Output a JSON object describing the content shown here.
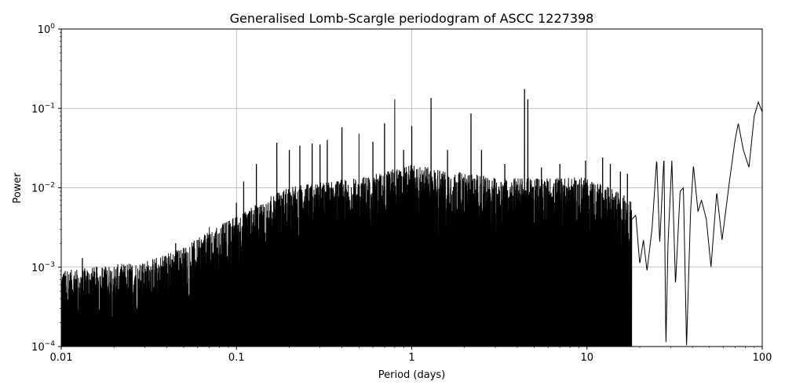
{
  "chart_data": {
    "type": "line",
    "title": "Generalised Lomb-Scargle periodogram of ASCC 1227398",
    "xlabel": "Period (days)",
    "ylabel": "Power",
    "xscale": "log",
    "yscale": "log",
    "xlim": [
      0.01,
      100
    ],
    "ylim": [
      0.0001,
      1
    ],
    "grid": true,
    "line_color": "#000000",
    "grid_color": "#b0b0b0",
    "x_ticks": [
      {
        "value": 0.01,
        "label": "0.01"
      },
      {
        "value": 0.1,
        "label": "0.1"
      },
      {
        "value": 1,
        "label": "1"
      },
      {
        "value": 10,
        "label": "10"
      },
      {
        "value": 100,
        "label": "100"
      }
    ],
    "y_ticks": [
      {
        "value": 0.0001,
        "base": "10",
        "exp": "−4"
      },
      {
        "value": 0.001,
        "base": "10",
        "exp": "−3"
      },
      {
        "value": 0.01,
        "base": "10",
        "exp": "−2"
      },
      {
        "value": 0.1,
        "base": "10",
        "exp": "−1"
      },
      {
        "value": 1,
        "base": "10",
        "exp": "0"
      }
    ],
    "noise_envelope": [
      [
        0.01,
        0.0006
      ],
      [
        0.03,
        0.0008
      ],
      [
        0.05,
        0.0012
      ],
      [
        0.1,
        0.003
      ],
      [
        0.2,
        0.007
      ],
      [
        0.5,
        0.009
      ],
      [
        1,
        0.013
      ],
      [
        3,
        0.009
      ],
      [
        10,
        0.009
      ],
      [
        18,
        0.005
      ]
    ],
    "peaks": [
      [
        0.0132,
        0.0013
      ],
      [
        0.045,
        0.002
      ],
      [
        0.07,
        0.0032
      ],
      [
        0.1,
        0.0065
      ],
      [
        0.11,
        0.012
      ],
      [
        0.13,
        0.02
      ],
      [
        0.17,
        0.037
      ],
      [
        0.2,
        0.03
      ],
      [
        0.23,
        0.034
      ],
      [
        0.27,
        0.036
      ],
      [
        0.3,
        0.035
      ],
      [
        0.33,
        0.04
      ],
      [
        0.4,
        0.058
      ],
      [
        0.5,
        0.048
      ],
      [
        0.6,
        0.038
      ],
      [
        0.7,
        0.065
      ],
      [
        0.8,
        0.13
      ],
      [
        0.9,
        0.03
      ],
      [
        1.0,
        0.06
      ],
      [
        1.29,
        0.135
      ],
      [
        1.6,
        0.03
      ],
      [
        2.18,
        0.086
      ],
      [
        2.5,
        0.03
      ],
      [
        3.4,
        0.02
      ],
      [
        4.4,
        0.175
      ],
      [
        4.6,
        0.13
      ],
      [
        5.5,
        0.018
      ],
      [
        7,
        0.02
      ],
      [
        9.8,
        0.022
      ],
      [
        12.3,
        0.024
      ],
      [
        13.6,
        0.02
      ],
      [
        15.5,
        0.016
      ],
      [
        17,
        0.015
      ]
    ],
    "smooth_tail": [
      [
        18,
        0.004
      ],
      [
        19,
        0.0045
      ],
      [
        20,
        0.0011
      ],
      [
        21,
        0.0022
      ],
      [
        22,
        0.0009
      ],
      [
        23.5,
        0.003
      ],
      [
        25,
        0.023
      ],
      [
        26,
        0.002
      ],
      [
        27.5,
        0.025
      ],
      [
        28.2,
        0.0001
      ],
      [
        29,
        0.002
      ],
      [
        30.5,
        0.022
      ],
      [
        32,
        0.0006
      ],
      [
        34,
        0.009
      ],
      [
        35.5,
        0.01
      ],
      [
        37,
        0.0001
      ],
      [
        39,
        0.005
      ],
      [
        40.5,
        0.019
      ],
      [
        43,
        0.005
      ],
      [
        45,
        0.007
      ],
      [
        48,
        0.004
      ],
      [
        51,
        0.001
      ],
      [
        55,
        0.0088
      ],
      [
        59,
        0.0022
      ],
      [
        65,
        0.012
      ],
      [
        70,
        0.04
      ],
      [
        73,
        0.065
      ],
      [
        78,
        0.03
      ],
      [
        84,
        0.018
      ],
      [
        90,
        0.08
      ],
      [
        95,
        0.12
      ],
      [
        100,
        0.09
      ]
    ]
  }
}
